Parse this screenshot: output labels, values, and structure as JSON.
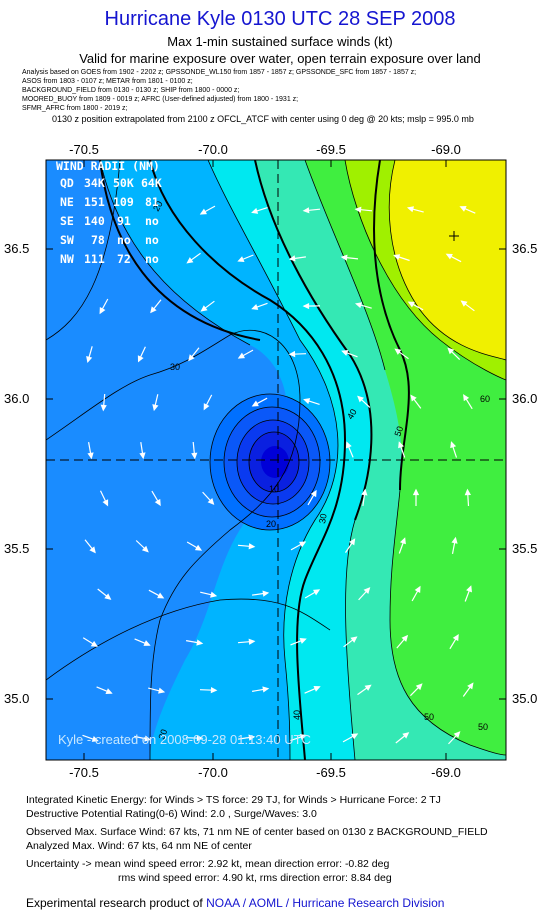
{
  "header": {
    "title": "Hurricane Kyle 0130 UTC 28 SEP 2008",
    "subtitle": "Max 1-min sustained surface winds (kt)",
    "valid_text": "Valid for marine exposure over water, open terrain exposure over land",
    "analysis_lines": [
      "Analysis based on  GOES from 1902 - 2202 z;  GPSSONDE_WL150 from 1857 - 1857 z;  GPSSONDE_SFC from 1857 - 1857 z;",
      "ASOS from 1803 - 0107 z;   METAR from 1801 - 0100 z;",
      "BACKGROUND_FIELD from 0130 - 0130 z;  SHIP from 1800 - 0000 z;",
      "MOORED_BUOY from 1809 - 0019 z;  AFRC (User-defined adjusted) from 1800 - 1931 z;",
      "SFMR_AFRC from 1800 - 2019 z;"
    ],
    "position_note": "0130 z position extrapolated from 2100 z OFCL_ATCF with center using 0 deg @ 20 kts; mslp = 995.0 mb"
  },
  "map": {
    "lon_ticks": [
      "-70.5",
      "-70.0",
      "-69.5",
      "-69.0"
    ],
    "lat_ticks": [
      "36.5",
      "36.0",
      "35.5",
      "35.0"
    ],
    "center": {
      "lon": -69.72,
      "lat": 35.8
    },
    "max_wind_marker": {
      "lon": -68.93,
      "lat": 36.55
    },
    "contour_labels": [
      "30",
      "30",
      "30",
      "40",
      "40",
      "50",
      "50",
      "50",
      "60",
      "20",
      "10",
      "20"
    ],
    "watermark": "Kyle - created on 2008-09-28 01:13:40 UTC",
    "wind_radii": {
      "title": "WIND RADII (NM)",
      "header": [
        "QD",
        "34K",
        "50K",
        "64K"
      ],
      "rows": [
        [
          "NE",
          "151",
          "109",
          "81"
        ],
        [
          "SE",
          "140",
          "91",
          "no"
        ],
        [
          "SW",
          "78",
          "no",
          "no"
        ],
        [
          "NW",
          "111",
          "72",
          "no"
        ]
      ]
    },
    "colors": {
      "c0_10": "#0000d8",
      "c10_20": "#0a3af0",
      "c20_30": "#0070ff",
      "c30_40": "#00b4ff",
      "c40_50": "#00e8f0",
      "c50_55": "#34e8b4",
      "c55_60": "#40ee40",
      "c60_65": "#a0f000",
      "c65_70": "#f0f000",
      "base": "#1a8cff"
    }
  },
  "footer": {
    "ike": "Integrated Kinetic Energy:  for Winds > TS force: 29 TJ,  for Winds > Hurricane Force: 2 TJ",
    "dpr": "Destructive Potential Rating(0-6)   Wind: 2.0 , Surge/Waves: 3.0",
    "obs_max": "Observed Max. Surface Wind: 67 kts, 71 nm NE of center based on 0130 z BACKGROUND_FIELD",
    "analyzed_max": "Analyzed Max. Wind: 67 kts, 64 nm NE of center",
    "uncertainty1": "Uncertainty -> mean wind speed error:  2.92 kt,   mean direction error:  -0.82 deg",
    "uncertainty2": "rms wind speed error: 4.90 kt,   rms direction error: 8.84 deg",
    "credit_prefix": "Experimental research product of",
    "credit_org": "NOAA / AOML / Hurricane Research Division"
  }
}
